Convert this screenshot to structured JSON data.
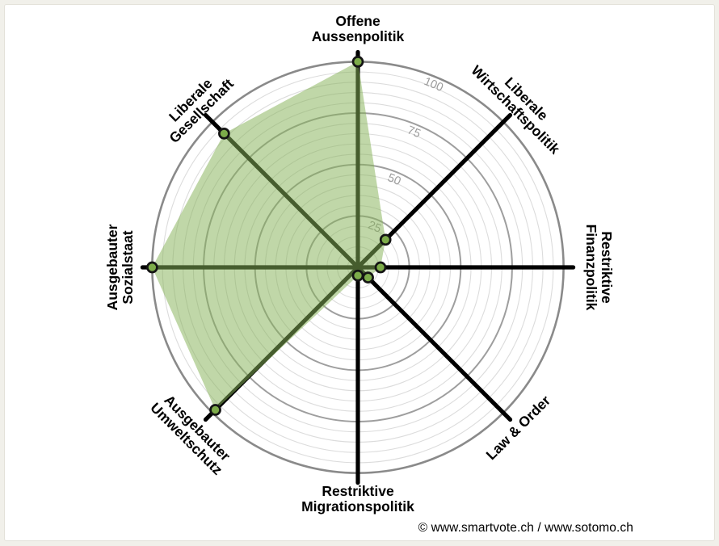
{
  "page": {
    "background_color": "#f1f0ea",
    "card_background": "#ffffff",
    "card_border_color": "#e3e1d9"
  },
  "footer": {
    "copyright": "© www.smartvote.ch / www.sotomo.ch"
  },
  "chart_data": {
    "type": "radar",
    "variant": "smartspider",
    "categories": [
      "Offene Aussenpolitik",
      "Liberale Wirtschaftspolitik",
      "Restriktive Finanzpolitik",
      "Law & Order",
      "Restriktive Migrationspolitik",
      "Ausgebauter Umweltschutz",
      "Ausgebauter Sozialstaat",
      "Liberale Gesellschaft"
    ],
    "values": [
      100,
      19,
      11,
      7,
      4,
      98,
      100,
      92
    ],
    "axis_label_lines": [
      [
        "Offene",
        "Aussenpolitik"
      ],
      [
        "Liberale",
        "Wirtschaftspolitik"
      ],
      [
        "Restriktive",
        "Finanzpolitik"
      ],
      [
        "Law & Order"
      ],
      [
        "Restriktive",
        "Migrationspolitik"
      ],
      [
        "Ausgebauter",
        "Umweltschutz"
      ],
      [
        "Ausgebauter",
        "Sozialstaat"
      ],
      [
        "Liberale",
        "Gesellschaft"
      ]
    ],
    "angles_deg_clockwise_from_top": [
      0,
      45,
      90,
      135,
      180,
      225,
      270,
      315
    ],
    "label_rotations_deg": [
      0,
      45,
      90,
      -45,
      0,
      45,
      -90,
      -45
    ],
    "label_radius_px": [
      296,
      286,
      299,
      281,
      287,
      291,
      295,
      284
    ],
    "scale": {
      "min": 0,
      "max": 100,
      "ring_step_minor": 5,
      "ring_step_major": 25,
      "tick_labels": [
        25,
        50,
        75,
        100
      ],
      "tick_angle_deg": 22.5,
      "grid": true,
      "legend": false
    },
    "colors": {
      "polygon_fill": "rgba(134,178,88,0.52)",
      "axis_line": "#000000",
      "dot_fill": "#7dac4a",
      "dot_stroke": "#141414",
      "ring_minor": "#dcdcdc",
      "ring_major": "#9e9e9e",
      "ring_outer": "#8a8a8a",
      "tick_label": "#9b9b9b",
      "center_circle": "#ffffff"
    }
  }
}
